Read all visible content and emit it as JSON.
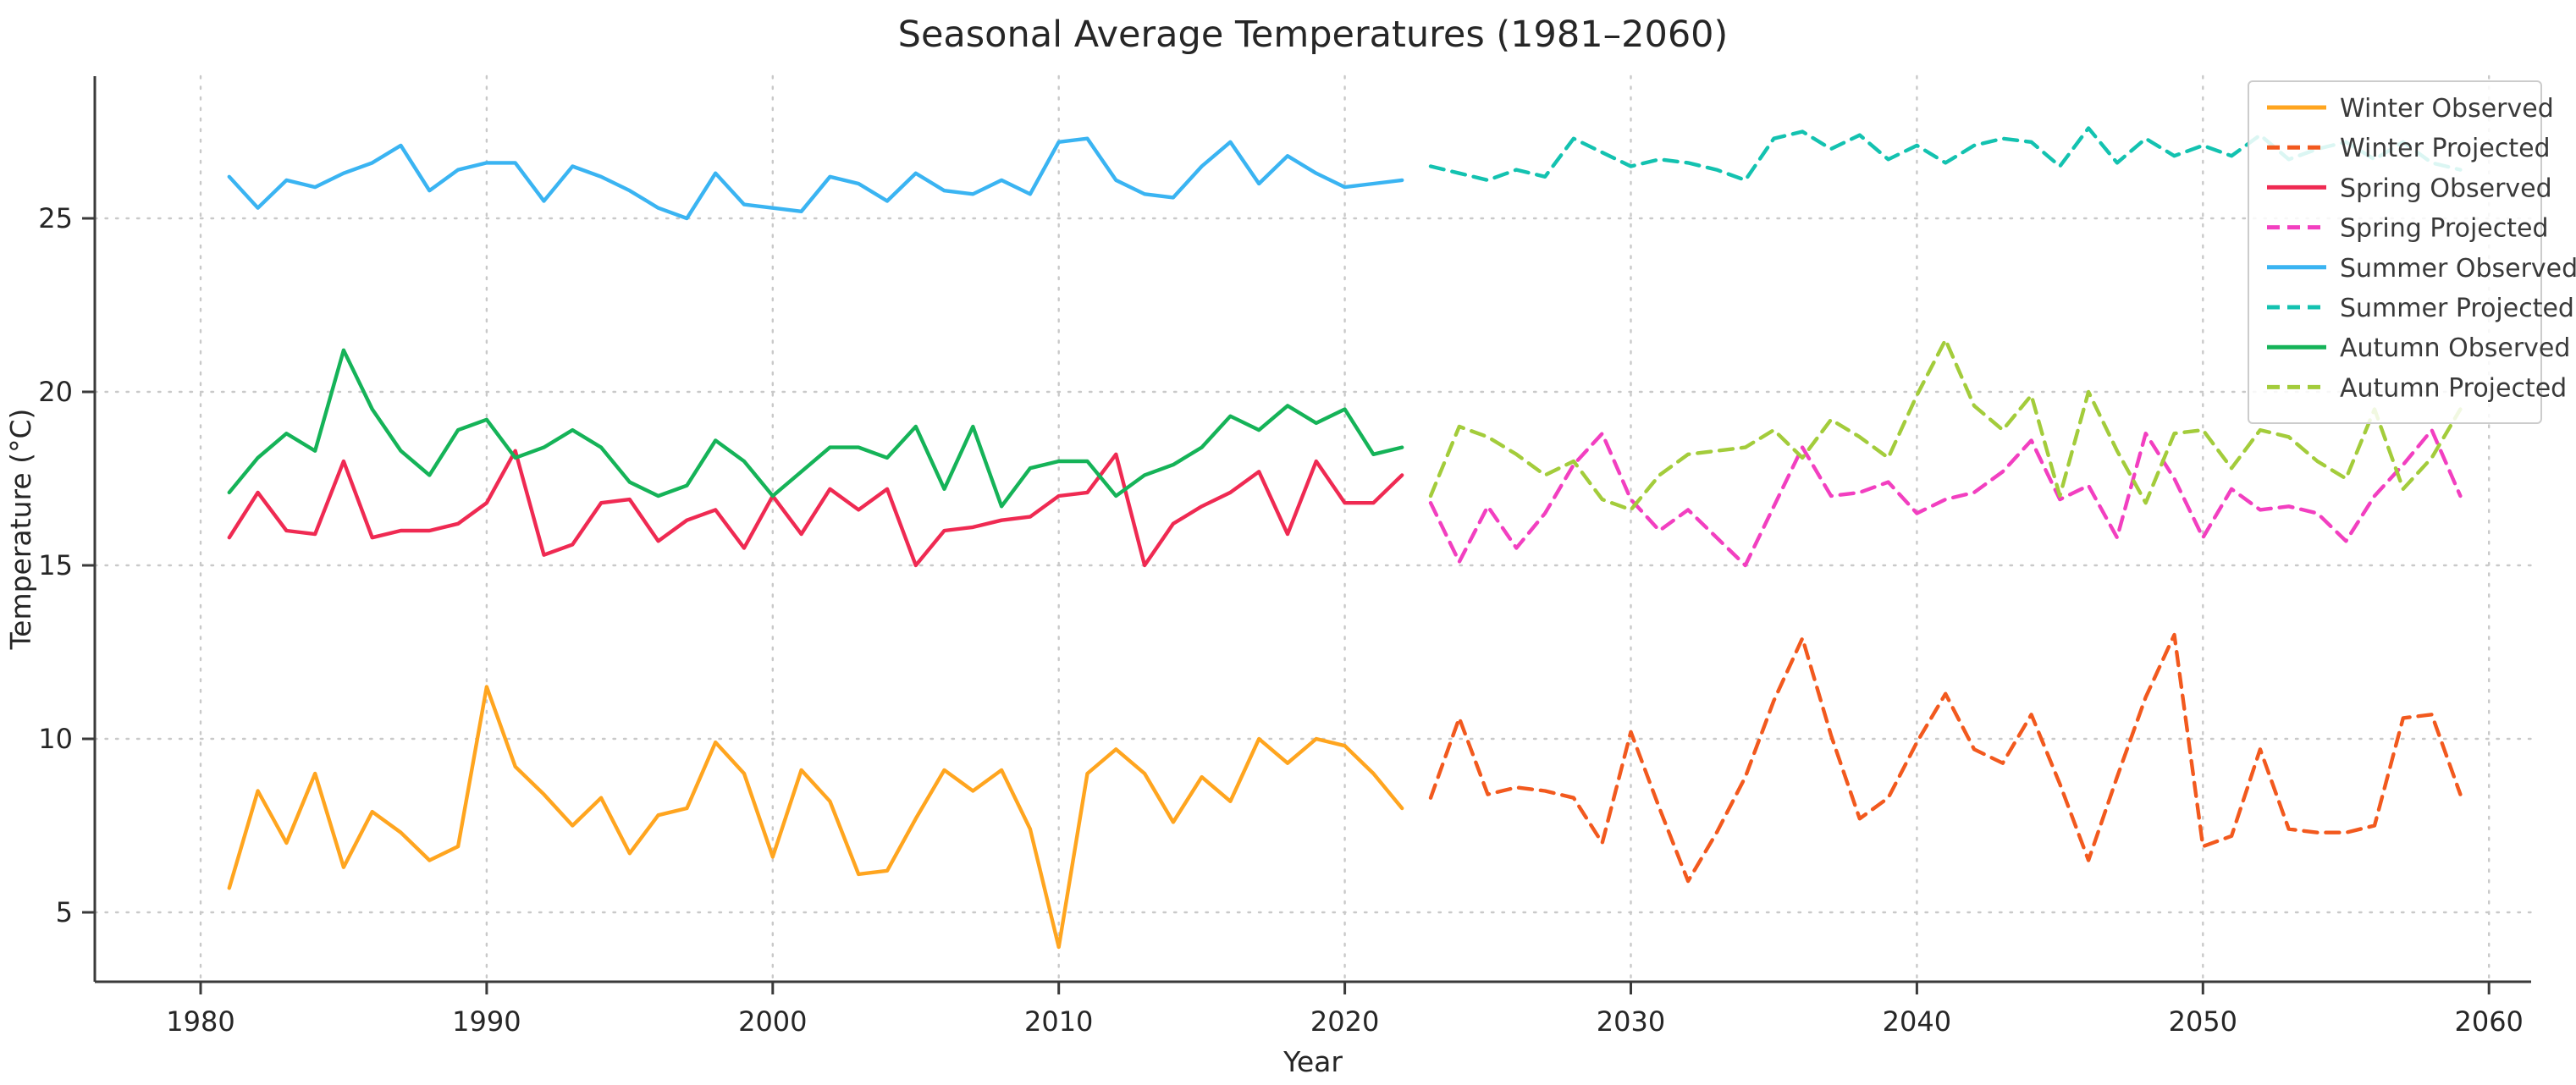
{
  "chart_data": {
    "type": "line",
    "title": "Seasonal Average Temperatures (1981–2060)",
    "xlabel": "Year",
    "ylabel": "Temperature (°C)",
    "x_ticks": [
      "1980",
      "1990",
      "2000",
      "2010",
      "2020",
      "2030",
      "2040",
      "2050",
      "2060"
    ],
    "x_tick_values": [
      1980,
      1990,
      2000,
      2010,
      2020,
      2030,
      2040,
      2050,
      2060
    ],
    "y_ticks": [
      "5",
      "10",
      "15",
      "20",
      "25"
    ],
    "y_tick_values": [
      5,
      10,
      15,
      20,
      25
    ],
    "xlim": [
      1976.3,
      2061.8
    ],
    "ylim": [
      3.0,
      29.2
    ],
    "grid": true,
    "grid_style": "dotted",
    "legend_position": "upper right",
    "colors": {
      "winter_observed": "#FFA51F",
      "winter_projected": "#F2591E",
      "spring_observed": "#EF2A52",
      "spring_projected": "#F23FC0",
      "summer_observed": "#3AB4F2",
      "summer_projected": "#13C2B0",
      "autumn_observed": "#15B358",
      "autumn_projected": "#A3CC3B",
      "axis": "#3a3a3a",
      "grid_color": "#c9c9c9",
      "text": "#262626"
    },
    "years_observed": [
      1981,
      1982,
      1983,
      1984,
      1985,
      1986,
      1987,
      1988,
      1989,
      1990,
      1991,
      1992,
      1993,
      1994,
      1995,
      1996,
      1997,
      1998,
      1999,
      2000,
      2001,
      2002,
      2003,
      2004,
      2005,
      2006,
      2007,
      2008,
      2009,
      2010,
      2011,
      2012,
      2013,
      2014,
      2015,
      2016,
      2017,
      2018,
      2019,
      2020,
      2021,
      2022
    ],
    "years_projected": [
      2023,
      2024,
      2025,
      2026,
      2027,
      2028,
      2029,
      2030,
      2031,
      2032,
      2033,
      2034,
      2035,
      2036,
      2037,
      2038,
      2039,
      2040,
      2041,
      2042,
      2043,
      2044,
      2045,
      2046,
      2047,
      2048,
      2049,
      2050,
      2051,
      2052,
      2053,
      2054,
      2055,
      2056,
      2057,
      2058,
      2059
    ],
    "series": [
      {
        "name": "Winter Observed",
        "color_key": "winter_observed",
        "style": "solid",
        "x_key": "years_observed",
        "values": [
          5.7,
          8.5,
          7.0,
          9.0,
          6.3,
          7.9,
          7.3,
          6.5,
          6.9,
          11.5,
          9.2,
          8.4,
          7.5,
          8.3,
          6.7,
          7.8,
          8.0,
          9.9,
          9.0,
          6.6,
          9.1,
          8.2,
          6.1,
          6.2,
          7.7,
          9.1,
          8.5,
          9.1,
          7.4,
          4.0,
          9.0,
          9.7,
          9.0,
          7.6,
          8.9,
          8.2,
          10.0,
          9.3,
          10.0,
          9.8,
          9.0,
          8.0
        ]
      },
      {
        "name": "Winter Projected",
        "color_key": "winter_projected",
        "style": "dashed",
        "x_key": "years_projected",
        "values": [
          8.3,
          10.6,
          8.4,
          8.6,
          8.5,
          8.3,
          7.0,
          10.2,
          8.0,
          5.9,
          7.3,
          8.9,
          11.1,
          12.9,
          10.1,
          7.7,
          8.3,
          9.9,
          11.3,
          9.7,
          9.3,
          10.7,
          8.7,
          6.5,
          8.9,
          11.2,
          13.0,
          6.9,
          7.2,
          9.7,
          7.4,
          7.3,
          7.3,
          7.5,
          10.6,
          10.7,
          8.4
        ]
      },
      {
        "name": "Spring Observed",
        "color_key": "spring_observed",
        "style": "solid",
        "x_key": "years_observed",
        "values": [
          15.8,
          17.1,
          16.0,
          15.9,
          18.0,
          15.8,
          16.0,
          16.0,
          16.2,
          16.8,
          18.3,
          15.3,
          15.6,
          16.8,
          16.9,
          15.7,
          16.3,
          16.6,
          15.5,
          17.0,
          15.9,
          17.2,
          16.6,
          17.2,
          15.0,
          16.0,
          16.1,
          16.3,
          16.4,
          17.0,
          17.1,
          18.2,
          15.0,
          16.2,
          16.7,
          17.1,
          17.7,
          15.9,
          18.0,
          16.8,
          16.8,
          17.6
        ]
      },
      {
        "name": "Spring Projected",
        "color_key": "spring_projected",
        "style": "dashed",
        "x_key": "years_projected",
        "values": [
          16.8,
          15.1,
          16.7,
          15.5,
          16.5,
          17.9,
          18.8,
          16.9,
          16.0,
          16.6,
          15.8,
          15.0,
          16.7,
          18.4,
          17.0,
          17.1,
          17.4,
          16.5,
          16.9,
          17.1,
          17.7,
          18.6,
          16.9,
          17.3,
          15.8,
          18.8,
          17.5,
          15.8,
          17.2,
          16.6,
          16.7,
          16.5,
          15.7,
          17.0,
          17.9,
          18.9,
          17.0
        ]
      },
      {
        "name": "Summer Observed",
        "color_key": "summer_observed",
        "style": "solid",
        "x_key": "years_observed",
        "values": [
          26.2,
          25.3,
          26.1,
          25.9,
          26.3,
          26.6,
          27.1,
          25.8,
          26.4,
          26.6,
          26.6,
          25.5,
          26.5,
          26.2,
          25.8,
          25.3,
          25.0,
          26.3,
          25.4,
          25.3,
          25.2,
          26.2,
          26.0,
          25.5,
          26.3,
          25.8,
          25.7,
          26.1,
          25.7,
          27.2,
          27.3,
          26.1,
          25.7,
          25.6,
          26.5,
          27.2,
          26.0,
          26.8,
          26.3,
          25.9,
          26.0,
          26.1
        ]
      },
      {
        "name": "Summer Projected",
        "color_key": "summer_projected",
        "style": "dashed",
        "x_key": "years_projected",
        "values": [
          26.5,
          26.3,
          26.1,
          26.4,
          26.2,
          27.3,
          26.9,
          26.5,
          26.7,
          26.6,
          26.4,
          26.1,
          27.3,
          27.5,
          27.0,
          27.4,
          26.7,
          27.1,
          26.6,
          27.1,
          27.3,
          27.2,
          26.5,
          27.6,
          26.6,
          27.3,
          26.8,
          27.1,
          26.8,
          27.4,
          26.7,
          27.0,
          27.2,
          26.7,
          27.2,
          26.6,
          26.4
        ]
      },
      {
        "name": "Autumn Observed",
        "color_key": "autumn_observed",
        "style": "solid",
        "x_key": "years_observed",
        "values": [
          17.1,
          18.1,
          18.8,
          18.3,
          21.2,
          19.5,
          18.3,
          17.6,
          18.9,
          19.2,
          18.1,
          18.4,
          18.9,
          18.4,
          17.4,
          17.0,
          17.3,
          18.6,
          18.0,
          17.0,
          17.7,
          18.4,
          18.4,
          18.1,
          19.0,
          17.2,
          19.0,
          16.7,
          17.8,
          18.0,
          18.0,
          17.0,
          17.6,
          17.9,
          18.4,
          19.3,
          18.9,
          19.6,
          19.1,
          19.5,
          18.2,
          18.4
        ]
      },
      {
        "name": "Autumn Projected",
        "color_key": "autumn_projected",
        "style": "dashed",
        "x_key": "years_projected",
        "values": [
          17.0,
          19.0,
          18.7,
          18.2,
          17.6,
          18.0,
          16.9,
          16.6,
          17.6,
          18.2,
          18.3,
          18.4,
          18.9,
          18.1,
          19.2,
          18.7,
          18.1,
          19.9,
          21.5,
          19.6,
          18.9,
          19.9,
          17.0,
          20.0,
          18.3,
          16.8,
          18.8,
          18.9,
          17.8,
          18.9,
          18.7,
          18.0,
          17.5,
          19.5,
          17.2,
          18.1,
          19.5
        ]
      }
    ]
  }
}
